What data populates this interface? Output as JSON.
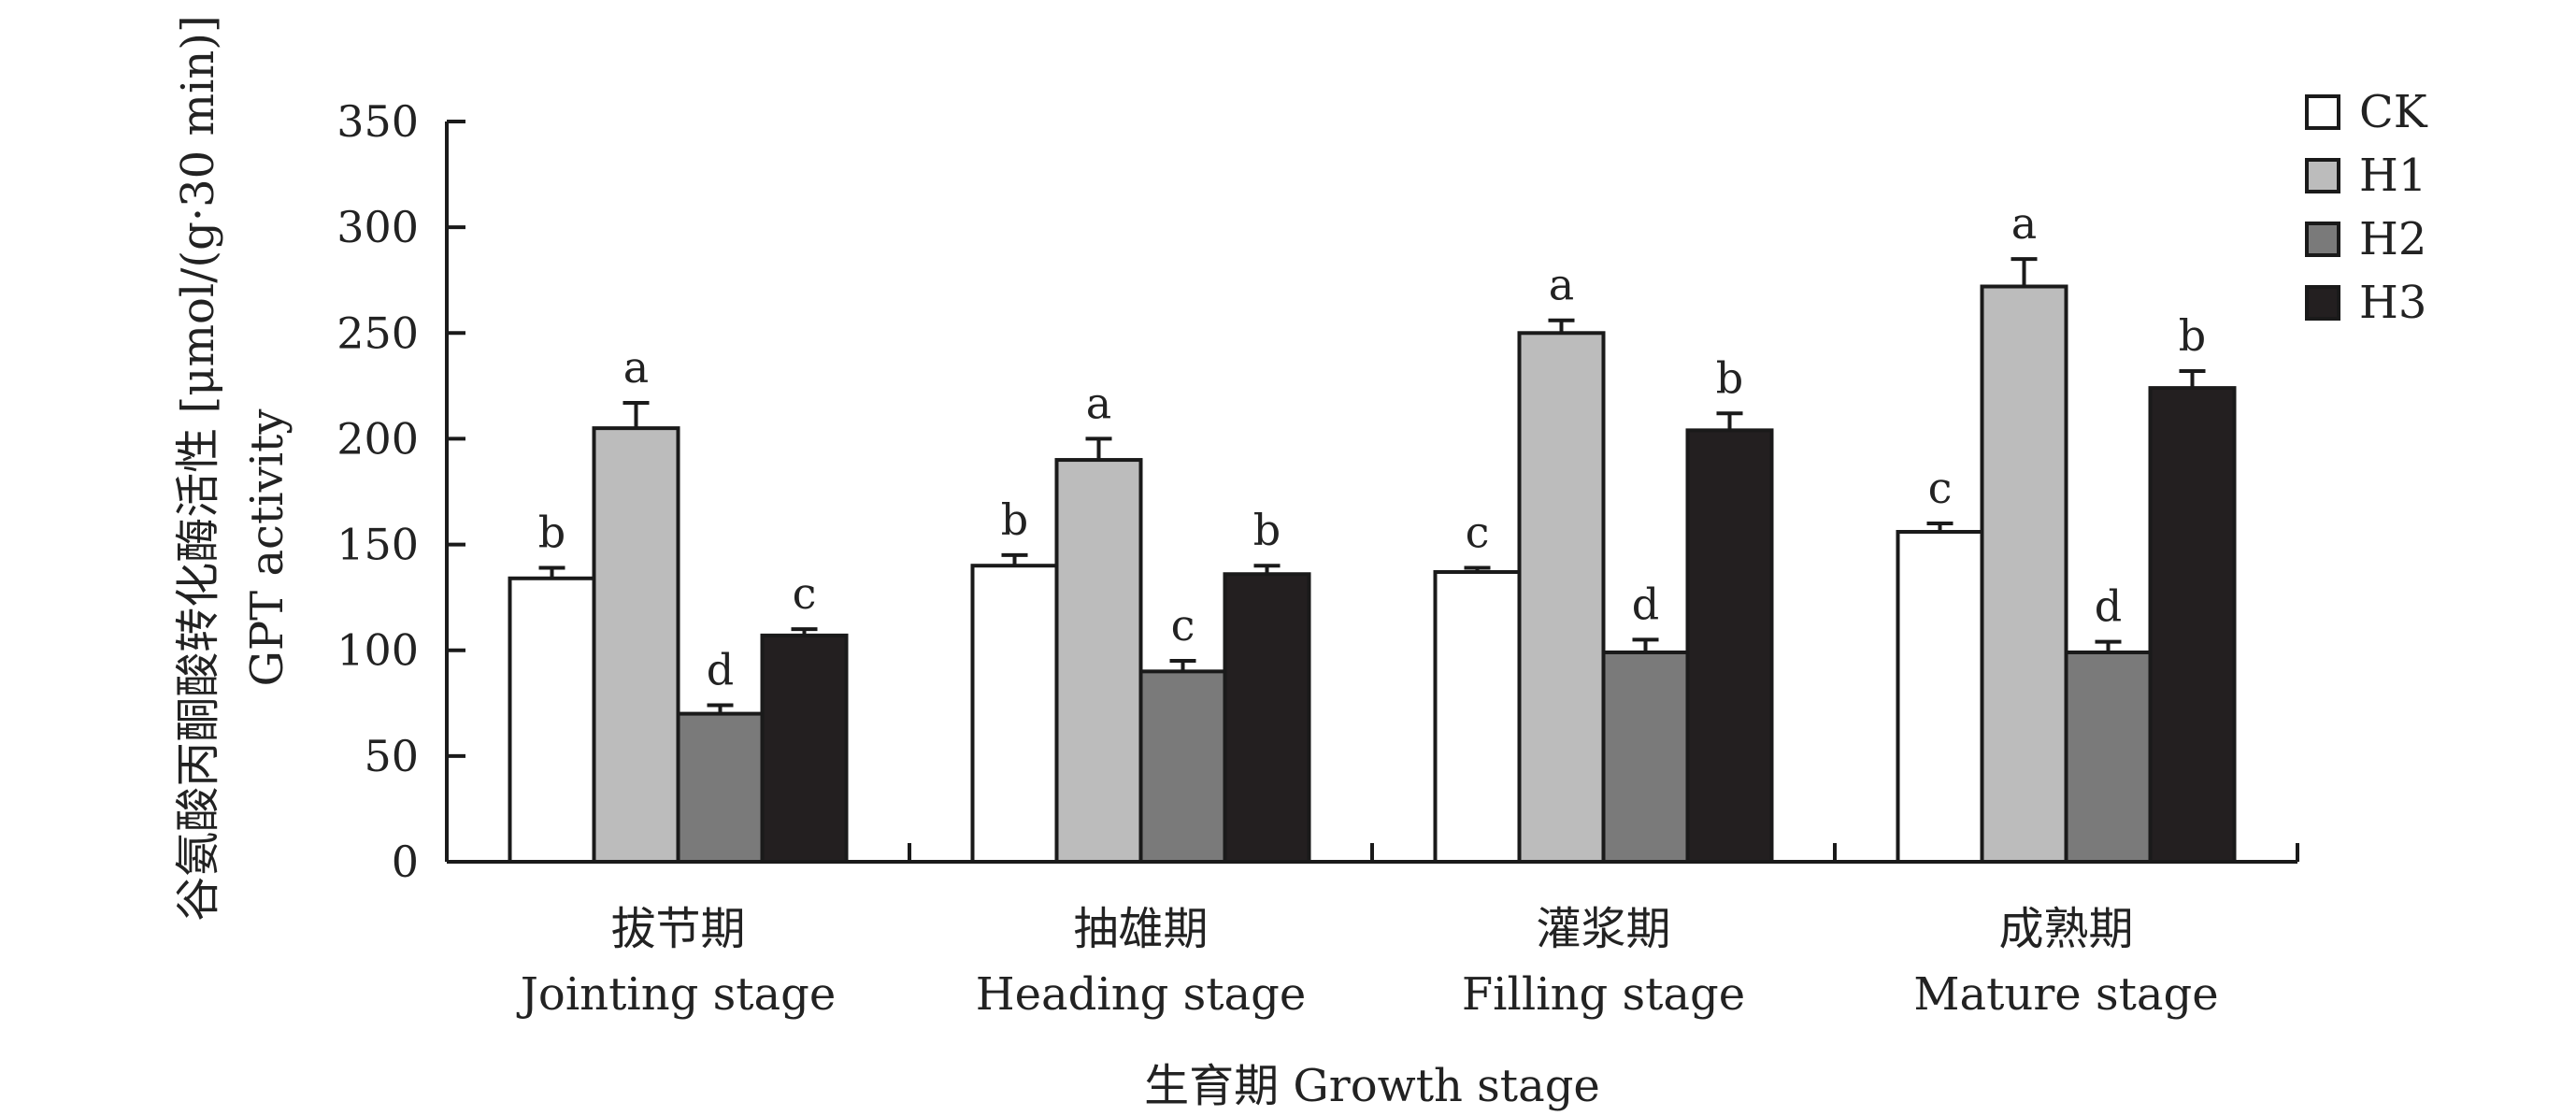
{
  "chart_data": {
    "type": "bar",
    "ylabel_cn": "谷氨酸丙酮酸转化酶活性 [μmol/(g·30 min)]",
    "ylabel_en": "GPT activity",
    "xlabel": "生育期 Growth stage",
    "ylim": [
      0,
      350
    ],
    "yticks": [
      0,
      50,
      100,
      150,
      200,
      250,
      300,
      350
    ],
    "grid": false,
    "legend_position": "top-right",
    "categories": [
      {
        "cn": "拔节期",
        "en": "Jointing stage"
      },
      {
        "cn": "抽雄期",
        "en": "Heading stage"
      },
      {
        "cn": "灌浆期",
        "en": "Filling stage"
      },
      {
        "cn": "成熟期",
        "en": "Mature stage"
      }
    ],
    "series": [
      {
        "name": "CK",
        "color": "#ffffff",
        "values": [
          134,
          140,
          137,
          156
        ],
        "errors": [
          5,
          5,
          2,
          4
        ],
        "letters": [
          "b",
          "b",
          "c",
          "c"
        ]
      },
      {
        "name": "H1",
        "color": "#bcbcbc",
        "values": [
          205,
          190,
          250,
          272
        ],
        "errors": [
          12,
          10,
          6,
          13
        ],
        "letters": [
          "a",
          "a",
          "a",
          "a"
        ]
      },
      {
        "name": "H2",
        "color": "#7a7a7a",
        "values": [
          70,
          90,
          99,
          99
        ],
        "errors": [
          4,
          5,
          6,
          5
        ],
        "letters": [
          "d",
          "c",
          "d",
          "d"
        ]
      },
      {
        "name": "H3",
        "color": "#231f20",
        "values": [
          107,
          136,
          204,
          224
        ],
        "errors": [
          3,
          4,
          8,
          8
        ],
        "letters": [
          "c",
          "b",
          "b",
          "b"
        ]
      }
    ]
  }
}
